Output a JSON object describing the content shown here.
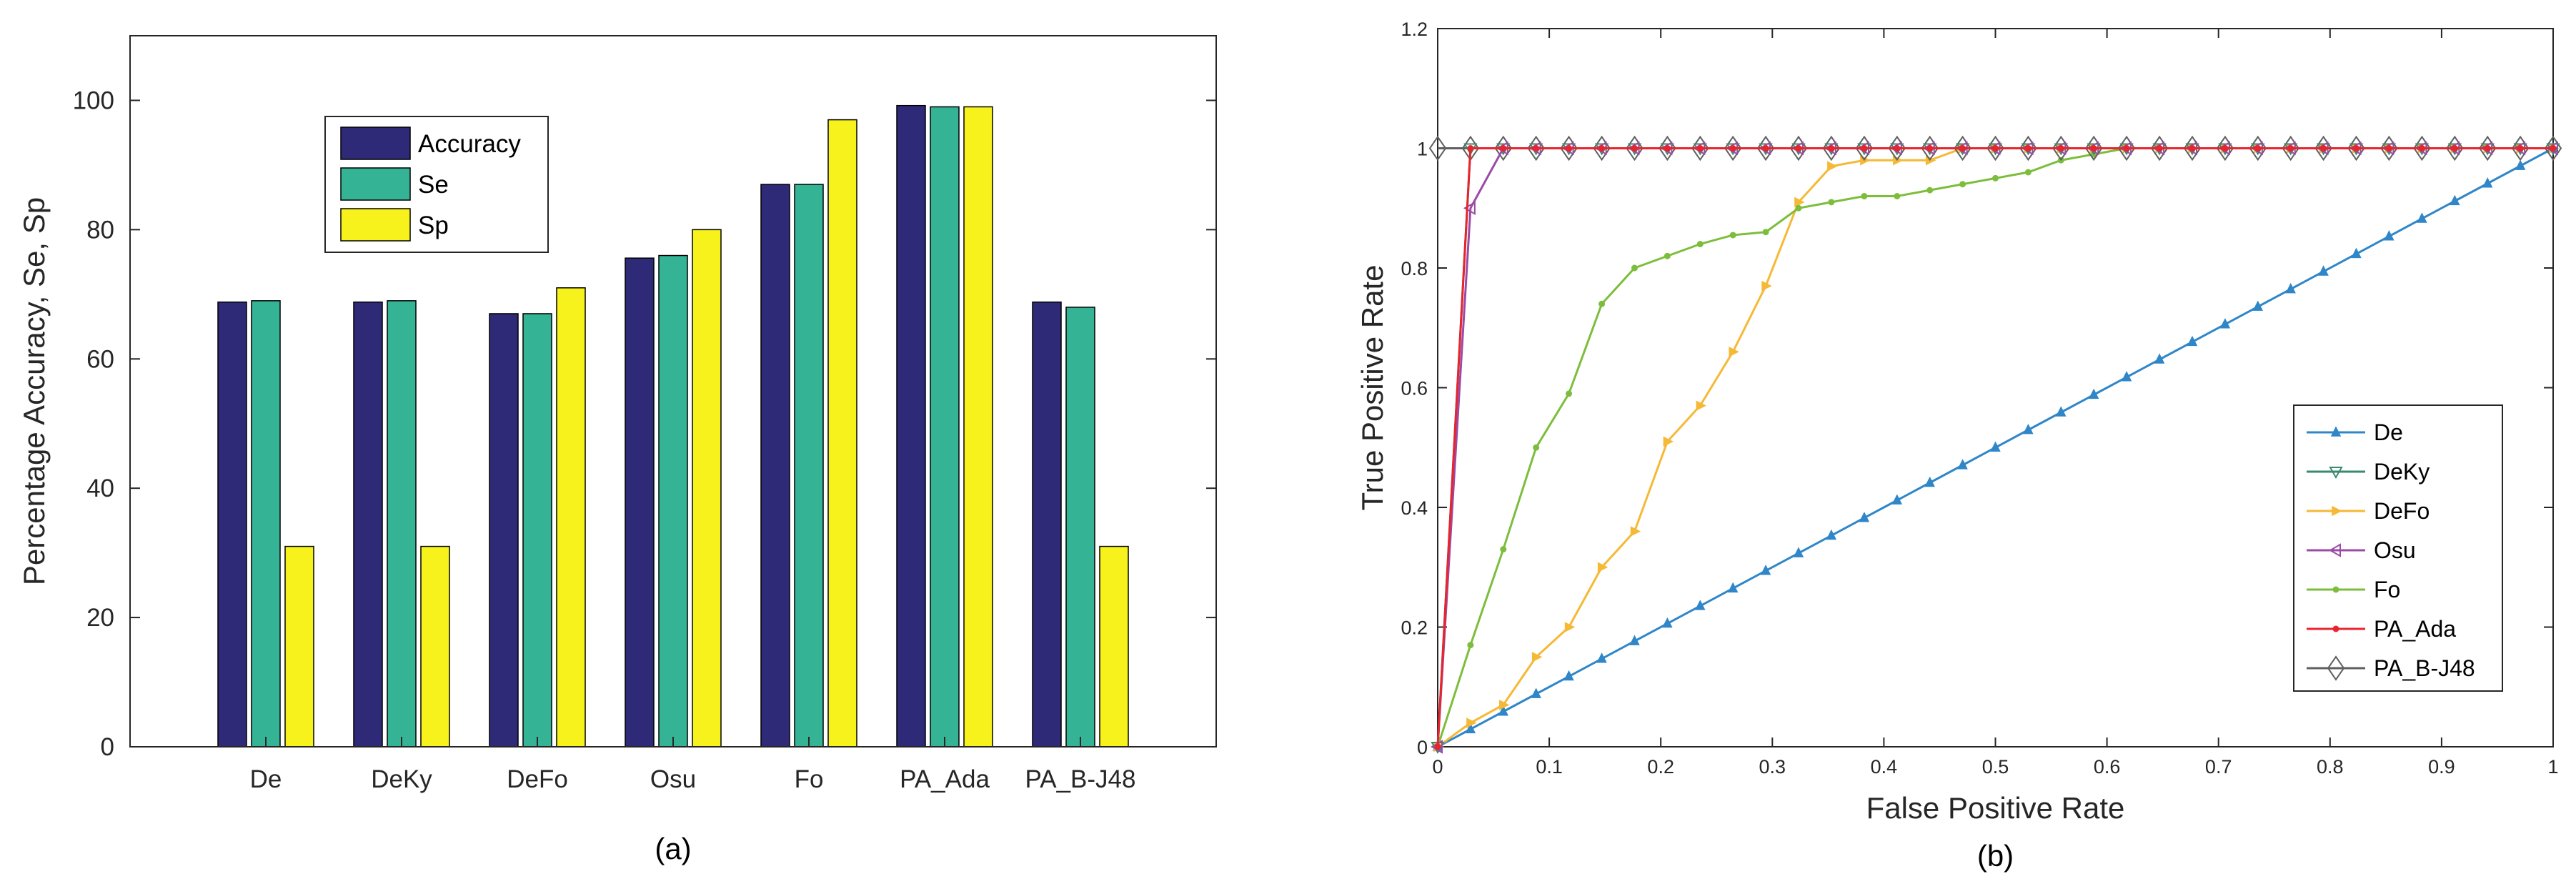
{
  "chart_data": [
    {
      "type": "bar",
      "caption": "(a)",
      "title": "",
      "xlabel": "",
      "ylabel": "Percentage Accuracy, Se, Sp",
      "ylim": [
        0,
        110
      ],
      "yticks": [
        0,
        20,
        40,
        60,
        80,
        100
      ],
      "categories": [
        "De",
        "DeKy",
        "DeFo",
        "Osu",
        "Fo",
        "PA_Ada",
        "PA_B-J48"
      ],
      "series": [
        {
          "name": "Accuracy",
          "color": "#2e2a78",
          "values": [
            68.8,
            68.8,
            67.0,
            75.6,
            87.0,
            99.2,
            68.8
          ]
        },
        {
          "name": "Se",
          "color": "#35b495",
          "values": [
            69.0,
            69.0,
            67.0,
            76.0,
            87.0,
            99.0,
            68.0
          ]
        },
        {
          "name": "Sp",
          "color": "#f7f21c",
          "values": [
            31.0,
            31.0,
            71.0,
            80.0,
            97.0,
            99.0,
            31.0
          ]
        }
      ],
      "legend_position": "top-left",
      "grid": false
    },
    {
      "type": "line",
      "caption": "(b)",
      "title": "",
      "xlabel": "False Positive Rate",
      "ylabel": "True Positive Rate",
      "xlim": [
        0,
        1
      ],
      "ylim": [
        0,
        1.2
      ],
      "xticks": [
        0,
        0.1,
        0.2,
        0.3,
        0.4,
        0.5,
        0.6,
        0.7,
        0.8,
        0.9,
        1
      ],
      "yticks": [
        0,
        0.2,
        0.4,
        0.6,
        0.8,
        1,
        1.2
      ],
      "xtick_labels": [
        "0",
        "0.1",
        "0.2",
        "0.3",
        "0.4",
        "0.5",
        "0.6",
        "0.7",
        "0.8",
        "0.9",
        "1"
      ],
      "ytick_labels": [
        "0",
        "0.2",
        "0.4",
        "0.6",
        "0.8",
        "1",
        "1.2"
      ],
      "legend_position": "bottom-right",
      "grid": false,
      "series": [
        {
          "name": "De",
          "color": "#2f86c8",
          "marker": "triangle-up",
          "x": [
            0,
            0.0294,
            0.0588,
            0.0882,
            0.1176,
            0.1471,
            0.1765,
            0.2059,
            0.2353,
            0.2647,
            0.2941,
            0.3235,
            0.3529,
            0.3824,
            0.4118,
            0.4412,
            0.4706,
            0.5,
            0.5294,
            0.5588,
            0.5882,
            0.6176,
            0.6471,
            0.6765,
            0.7059,
            0.7353,
            0.7647,
            0.7941,
            0.8235,
            0.8529,
            0.8824,
            0.9118,
            0.9412,
            0.9706,
            1
          ],
          "y": [
            0,
            0.0294,
            0.0588,
            0.0882,
            0.1176,
            0.1471,
            0.1765,
            0.2059,
            0.2353,
            0.2647,
            0.2941,
            0.3235,
            0.3529,
            0.3824,
            0.4118,
            0.4412,
            0.4706,
            0.5,
            0.5294,
            0.5588,
            0.5882,
            0.6176,
            0.6471,
            0.6765,
            0.7059,
            0.7353,
            0.7647,
            0.7941,
            0.8235,
            0.8529,
            0.8824,
            0.9118,
            0.9412,
            0.9706,
            1
          ]
        },
        {
          "name": "DeKy",
          "color": "#3a8a6e",
          "marker": "triangle-down",
          "x": [
            0,
            0.0294,
            0.0588,
            0.0882,
            0.1176,
            0.1471,
            0.1765,
            0.2059,
            0.2353,
            0.2647,
            0.2941,
            0.3235,
            0.3529,
            0.3824,
            0.4118,
            0.4412,
            0.4706,
            0.5,
            0.5294,
            0.5588,
            0.5882,
            0.6176,
            0.6471,
            0.6765,
            0.7059,
            0.7353,
            0.7647,
            0.7941,
            0.8235,
            0.8529,
            0.8824,
            0.9118,
            0.9412,
            0.9706,
            1
          ],
          "y": [
            0,
            1,
            1,
            1,
            1,
            1,
            1,
            1,
            1,
            1,
            1,
            1,
            1,
            1,
            1,
            1,
            1,
            1,
            1,
            1,
            1,
            1,
            1,
            1,
            1,
            1,
            1,
            1,
            1,
            1,
            1,
            1,
            1,
            1,
            1
          ]
        },
        {
          "name": "DeFo",
          "color": "#f5b935",
          "marker": "triangle-right",
          "x": [
            0,
            0.0294,
            0.0588,
            0.0882,
            0.1176,
            0.1471,
            0.1765,
            0.2059,
            0.2353,
            0.2647,
            0.2941,
            0.3235,
            0.3529,
            0.3824,
            0.4118,
            0.4412,
            0.4706,
            0.5,
            0.5294,
            0.5588,
            0.5882,
            0.6176,
            0.6471,
            0.6765,
            0.7059,
            0.7353,
            0.7647,
            0.7941,
            0.8235,
            0.8529,
            0.8824,
            0.9118,
            0.9412,
            0.9706,
            1
          ],
          "y": [
            0,
            0.04,
            0.07,
            0.15,
            0.2,
            0.3,
            0.36,
            0.51,
            0.57,
            0.66,
            0.77,
            0.91,
            0.97,
            0.98,
            0.98,
            0.98,
            1,
            1,
            1,
            1,
            1,
            1,
            1,
            1,
            1,
            1,
            1,
            1,
            1,
            1,
            1,
            1,
            1,
            1,
            1
          ]
        },
        {
          "name": "Osu",
          "color": "#9b4ba6",
          "marker": "triangle-left",
          "x": [
            0,
            0.0294,
            0.0588,
            0.0882,
            0.1176,
            0.1471,
            0.1765,
            0.2059,
            0.2353,
            0.2647,
            0.2941,
            0.3235,
            0.3529,
            0.3824,
            0.4118,
            0.4412,
            0.4706,
            0.5,
            0.5294,
            0.5588,
            0.5882,
            0.6176,
            0.6471,
            0.6765,
            0.7059,
            0.7353,
            0.7647,
            0.7941,
            0.8235,
            0.8529,
            0.8824,
            0.9118,
            0.9412,
            0.9706,
            1
          ],
          "y": [
            0,
            0.9,
            1,
            1,
            1,
            1,
            1,
            1,
            1,
            1,
            1,
            1,
            1,
            1,
            1,
            1,
            1,
            1,
            1,
            1,
            1,
            1,
            1,
            1,
            1,
            1,
            1,
            1,
            1,
            1,
            1,
            1,
            1,
            1,
            1
          ]
        },
        {
          "name": "Fo",
          "color": "#7cbe3b",
          "marker": "dot",
          "x": [
            0,
            0.0294,
            0.0588,
            0.0882,
            0.1176,
            0.1471,
            0.1765,
            0.2059,
            0.2353,
            0.2647,
            0.2941,
            0.3235,
            0.3529,
            0.3824,
            0.4118,
            0.4412,
            0.4706,
            0.5,
            0.5294,
            0.5588,
            0.5882,
            0.6176,
            0.6471,
            0.6765,
            0.7059,
            0.7353,
            0.7647,
            0.7941,
            0.8235,
            0.8529,
            0.8824,
            0.9118,
            0.9412,
            0.9706,
            1
          ],
          "y": [
            0,
            0.17,
            0.33,
            0.5,
            0.59,
            0.74,
            0.8,
            0.82,
            0.84,
            0.855,
            0.86,
            0.9,
            0.91,
            0.92,
            0.92,
            0.93,
            0.94,
            0.95,
            0.96,
            0.98,
            0.99,
            1,
            1,
            1,
            1,
            1,
            1,
            1,
            1,
            1,
            1,
            1,
            1,
            1,
            1
          ]
        },
        {
          "name": "PA_Ada",
          "color": "#e8242c",
          "marker": "dot",
          "x": [
            0,
            0.0294,
            0.0588,
            0.0882,
            0.1176,
            0.1471,
            0.1765,
            0.2059,
            0.2353,
            0.2647,
            0.2941,
            0.3235,
            0.3529,
            0.3824,
            0.4118,
            0.4412,
            0.4706,
            0.5,
            0.5294,
            0.5588,
            0.5882,
            0.6176,
            0.6471,
            0.6765,
            0.7059,
            0.7353,
            0.7647,
            0.7941,
            0.8235,
            0.8529,
            0.8824,
            0.9118,
            0.9412,
            0.9706,
            1
          ],
          "y": [
            0,
            1,
            1,
            1,
            1,
            1,
            1,
            1,
            1,
            1,
            1,
            1,
            1,
            1,
            1,
            1,
            1,
            1,
            1,
            1,
            1,
            1,
            1,
            1,
            1,
            1,
            1,
            1,
            1,
            1,
            1,
            1,
            1,
            1,
            1
          ]
        },
        {
          "name": "PA_B-J48",
          "color": "#606060",
          "marker": "diamond",
          "x": [
            0,
            0.0294,
            0.0588,
            0.0882,
            0.1176,
            0.1471,
            0.1765,
            0.2059,
            0.2353,
            0.2647,
            0.2941,
            0.3235,
            0.3529,
            0.3824,
            0.4118,
            0.4412,
            0.4706,
            0.5,
            0.5294,
            0.5588,
            0.5882,
            0.6176,
            0.6471,
            0.6765,
            0.7059,
            0.7353,
            0.7647,
            0.7941,
            0.8235,
            0.8529,
            0.8824,
            0.9118,
            0.9412,
            0.9706,
            1
          ],
          "y": [
            1,
            1,
            1,
            1,
            1,
            1,
            1,
            1,
            1,
            1,
            1,
            1,
            1,
            1,
            1,
            1,
            1,
            1,
            1,
            1,
            1,
            1,
            1,
            1,
            1,
            1,
            1,
            1,
            1,
            1,
            1,
            1,
            1,
            1,
            1
          ]
        }
      ]
    }
  ]
}
